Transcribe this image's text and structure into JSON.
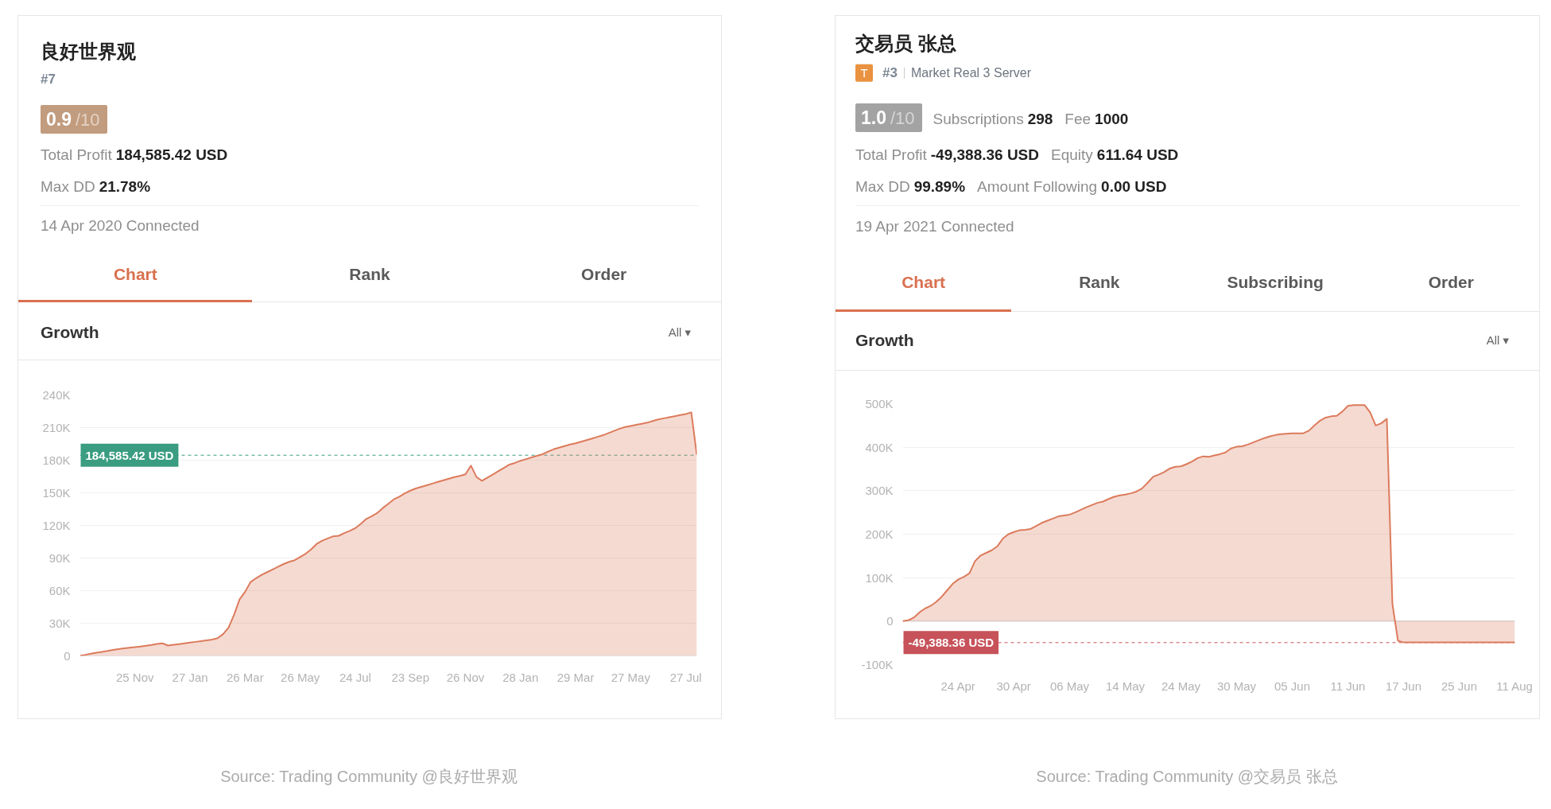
{
  "chart_data": [
    {
      "type": "area",
      "title": "Growth",
      "color": "#dc7b5c",
      "categories": [
        null,
        null,
        null,
        null,
        null,
        null,
        null,
        null,
        null,
        null,
        "25 Nov",
        null,
        null,
        null,
        null,
        null,
        null,
        null,
        null,
        null,
        "27 Jan",
        null,
        null,
        null,
        null,
        null,
        null,
        null,
        null,
        null,
        "26 Mar",
        null,
        null,
        null,
        null,
        null,
        null,
        null,
        null,
        null,
        "26 May",
        null,
        null,
        null,
        null,
        null,
        null,
        null,
        null,
        null,
        "24 Jul",
        null,
        null,
        null,
        null,
        null,
        null,
        null,
        null,
        null,
        "23 Sep",
        null,
        null,
        null,
        null,
        null,
        null,
        null,
        null,
        null,
        "26 Nov",
        null,
        null,
        null,
        null,
        null,
        null,
        null,
        null,
        null,
        "28 Jan",
        null,
        null,
        null,
        null,
        null,
        null,
        null,
        null,
        null,
        "29 Mar",
        null,
        null,
        null,
        null,
        null,
        null,
        null,
        null,
        null,
        "27 May",
        null,
        null,
        null,
        null,
        null,
        null,
        null,
        null,
        null,
        "27 Jul",
        null,
        null
      ],
      "values": [
        0,
        1000,
        2000,
        3000,
        3700,
        4500,
        5500,
        6300,
        7000,
        7500,
        8000,
        8600,
        9300,
        10000,
        11000,
        11500,
        9500,
        10200,
        10800,
        11500,
        12200,
        12900,
        13600,
        14300,
        15000,
        16300,
        20000,
        26000,
        38000,
        52000,
        59000,
        68000,
        71500,
        74500,
        77000,
        79500,
        82000,
        84500,
        86500,
        88000,
        91000,
        94000,
        98000,
        103000,
        106000,
        108000,
        110000,
        110500,
        113000,
        115000,
        117500,
        121500,
        126000,
        128500,
        131500,
        136000,
        140000,
        144000,
        146500,
        149500,
        152000,
        154000,
        155500,
        157000,
        158500,
        160000,
        161500,
        163000,
        164500,
        165500,
        167000,
        175000,
        164500,
        161000,
        164000,
        167000,
        170000,
        173000,
        176000,
        177500,
        179500,
        181000,
        182500,
        184000,
        185500,
        188000,
        190000,
        191500,
        193000,
        194500,
        195500,
        197000,
        198500,
        200000,
        201500,
        203000,
        205000,
        207000,
        209000,
        210500,
        211500,
        212500,
        213500,
        214500,
        216000,
        217500,
        218500,
        219500,
        220500,
        221500,
        222500,
        224000,
        185000
      ],
      "ylim": [
        0,
        240000
      ],
      "yticks": [
        0,
        {
          "value": 30000,
          "label": "30K"
        },
        {
          "value": 60000,
          "label": "60K"
        },
        {
          "value": 90000,
          "label": "90K"
        },
        {
          "value": 120000,
          "label": "120K"
        },
        {
          "value": 150000,
          "label": "150K"
        },
        {
          "value": 180000,
          "label": "180K"
        },
        {
          "value": 210000,
          "label": "210K"
        },
        {
          "value": 240000,
          "label": "240K"
        }
      ],
      "grid": "y",
      "ref_lines": [
        {
          "axis": "y",
          "value": 184585.42,
          "label": "184,585.42 USD",
          "color": "#3a9c80",
          "line_style": "dashed"
        }
      ],
      "annotations": [
        "良好世界观",
        "#7",
        "0.9",
        "/10",
        "Total Profit",
        "184,585.42 USD",
        "Max DD",
        "21.78%",
        "14 Apr 2020 Connected",
        "Chart",
        "Rank",
        "Order",
        "All ▾",
        "Source: Trading Community @良好世界观"
      ]
    },
    {
      "type": "area",
      "title": "Growth",
      "color": "#dc7b5c",
      "categories": [
        null,
        null,
        null,
        null,
        null,
        null,
        null,
        null,
        null,
        null,
        "24 Apr",
        null,
        null,
        null,
        null,
        null,
        null,
        null,
        null,
        null,
        "30 Apr",
        null,
        null,
        null,
        null,
        null,
        null,
        null,
        null,
        null,
        "06 May",
        null,
        null,
        null,
        null,
        null,
        null,
        null,
        null,
        null,
        "14 May",
        null,
        null,
        null,
        null,
        null,
        null,
        null,
        null,
        null,
        "24 May",
        null,
        null,
        null,
        null,
        null,
        null,
        null,
        null,
        null,
        "30 May",
        null,
        null,
        null,
        null,
        null,
        null,
        null,
        null,
        null,
        "05 Jun",
        null,
        null,
        null,
        null,
        null,
        null,
        null,
        null,
        null,
        "11 Jun",
        null,
        null,
        null,
        null,
        null,
        null,
        null,
        null,
        null,
        "17 Jun",
        null,
        null,
        null,
        null,
        null,
        null,
        null,
        null,
        null,
        "25 Jun",
        null,
        null,
        null,
        null,
        null,
        null,
        null,
        null,
        null,
        "11 Aug"
      ],
      "values": [
        0,
        2000,
        8000,
        20000,
        29000,
        35000,
        44000,
        56000,
        71000,
        86000,
        96000,
        102000,
        110000,
        138000,
        151000,
        157000,
        163000,
        172000,
        190000,
        200000,
        205000,
        209000,
        210000,
        212000,
        219000,
        226000,
        231000,
        236000,
        241000,
        243000,
        245000,
        250000,
        256000,
        262000,
        267000,
        272000,
        275000,
        281000,
        286000,
        289000,
        291000,
        294000,
        298000,
        305000,
        318000,
        332000,
        337000,
        343000,
        351000,
        355000,
        356000,
        361000,
        367000,
        375000,
        379000,
        378000,
        381000,
        384000,
        388000,
        397000,
        401000,
        402000,
        406000,
        411000,
        416000,
        421000,
        425000,
        428000,
        430000,
        431000,
        432000,
        432000,
        432000,
        438000,
        450000,
        461000,
        468000,
        471000,
        472000,
        482000,
        495000,
        497000,
        497000,
        497000,
        480000,
        450000,
        455000,
        465000,
        40000,
        -45000,
        -49000,
        -49000,
        -49000,
        -49000,
        -49000,
        -49000,
        -49000,
        -49000,
        -49000,
        -49000,
        -49000,
        -49000,
        -49000,
        -49000,
        -49000,
        -49000,
        -49000,
        -49000,
        -49000,
        -49000,
        -49000
      ],
      "ylim": [
        -100000,
        500000
      ],
      "yticks": [
        {
          "value": -100000,
          "label": "-100K"
        },
        0,
        {
          "value": 100000,
          "label": "100K"
        },
        {
          "value": 200000,
          "label": "200K"
        },
        {
          "value": 300000,
          "label": "300K"
        },
        {
          "value": 400000,
          "label": "400K"
        },
        {
          "value": 500000,
          "label": "500K"
        }
      ],
      "grid": "y",
      "ref_lines": [
        {
          "axis": "y",
          "value": -49388.36,
          "label": "-49,388.36 USD",
          "color": "#c7525a",
          "line_style": "dashed"
        }
      ],
      "annotations": [
        "交易员 张总",
        "T",
        "#3",
        "Market Real 3 Server",
        "1.0",
        "/10",
        "Subscriptions",
        "298",
        "Fee",
        "1000",
        "Total Profit",
        "-49,388.36 USD",
        "Equity",
        "611.64 USD",
        "Max DD",
        "99.89%",
        "Amount Following",
        "0.00 USD",
        "19 Apr 2021 Connected",
        "Chart",
        "Rank",
        "Subscribing",
        "Order",
        "All ▾",
        "Source: Trading Community @交易员 张总"
      ]
    }
  ]
}
